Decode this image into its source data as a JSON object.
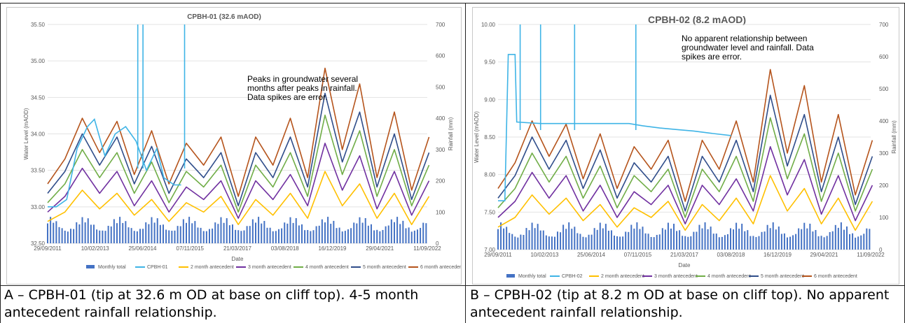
{
  "charts": [
    {
      "title": "CPBH-01 (32.6 mAOD)",
      "ylabel": "Water Level (mAOD)",
      "y2label": "Rainfall (mm)",
      "xlabel": "Date",
      "annotation": [
        "Peaks in groundwater several",
        "months after peaks in rainfall.",
        "Data spikes are error."
      ],
      "caption": "A – CPBH-01 (tip at 32.6 m OD at base on cliff top). 4-5 month antecedent rainfall relationship.",
      "yticks": [
        "32.50",
        "33.00",
        "33.50",
        "34.00",
        "34.50",
        "35.00",
        "35.50"
      ],
      "y2ticks": [
        "0",
        "100",
        "200",
        "300",
        "400",
        "500",
        "600",
        "700"
      ],
      "xticks": [
        "29/09/2011",
        "10/02/2013",
        "25/06/2014",
        "07/11/2015",
        "21/03/2017",
        "03/08/2018",
        "16/12/2019",
        "29/04/2021",
        "11/09/2022"
      ],
      "legend": [
        "Monthly total",
        "CPBH-01",
        "2 month antecedent",
        "3 month antecedent",
        "4 month antecedent",
        "5 month antecedent",
        "6 month antecedent"
      ]
    },
    {
      "title": "CPBH-02 (8.2 mAOD)",
      "ylabel": "Water Level (mAOD)",
      "y2label": "Rainfall (mm)",
      "xlabel": "Date",
      "annotation": [
        "No apparent relationship between",
        "groundwater level and rainfall. Data",
        "spikes are error."
      ],
      "caption": "B – CPBH-02 (tip at 8.2 m OD at base on cliff top). No apparent antecedent rainfall relationship.",
      "yticks": [
        "7.00",
        "7.50",
        "8.00",
        "8.50",
        "9.00",
        "9.50",
        "10.00"
      ],
      "y2ticks": [
        "0",
        "100",
        "200",
        "300",
        "400",
        "500",
        "600",
        "700"
      ],
      "xticks": [
        "29/09/2011",
        "10/02/2013",
        "25/06/2014",
        "07/11/2015",
        "21/03/2017",
        "03/08/2018",
        "16/12/2019",
        "29/04/2021",
        "11/09/2022"
      ],
      "legend": [
        "Monthly total",
        "CPBH-02",
        "2 month antecedent",
        "3 month antecedent",
        "4 month antecedent",
        "5 month antecedent",
        "6 month antecedent"
      ]
    }
  ],
  "series_colors": {
    "monthly_total": "#4472c4",
    "groundwater": "#3fb4e6",
    "m2": "#ffc000",
    "m3": "#7030a0",
    "m4": "#70ad47",
    "m5": "#2f4d8a",
    "m6": "#b5541c"
  },
  "chart_data": [
    {
      "type": "line",
      "title": "CPBH-01 (32.6 mAOD)",
      "xlabel": "Date",
      "ylabel": "Water Level (mAOD)",
      "y2label": "Rainfall (mm)",
      "x_range": [
        "29/09/2011",
        "11/09/2022"
      ],
      "ylim": [
        32.5,
        35.5
      ],
      "y2lim": [
        0,
        700
      ],
      "legend_position": "bottom",
      "series": [
        {
          "name": "CPBH-01",
          "axis": "left",
          "x_years": [
            2011.75,
            2012.0,
            2012.3,
            2012.6,
            2012.9,
            2013.1,
            2013.4,
            2013.7,
            2014.0,
            2014.3,
            2014.6,
            2014.9,
            2015.1,
            2015.4,
            2015.6
          ],
          "values": [
            33.0,
            33.0,
            33.1,
            33.8,
            34.1,
            34.2,
            33.7,
            34.0,
            34.1,
            33.9,
            33.5,
            33.8,
            33.4,
            33.3,
            33.3
          ]
        },
        {
          "name": "2 month antecedent",
          "axis": "right",
          "x_years": [
            2011.75,
            2012.25,
            2012.75,
            2013.25,
            2013.75,
            2014.25,
            2014.75,
            2015.25,
            2015.75,
            2016.25,
            2016.75,
            2017.25,
            2017.75,
            2018.25,
            2018.75,
            2019.25,
            2019.75,
            2020.25,
            2020.75,
            2021.25,
            2021.75,
            2022.25,
            2022.75
          ],
          "values": [
            70,
            100,
            170,
            110,
            160,
            90,
            140,
            70,
            130,
            100,
            150,
            60,
            140,
            90,
            160,
            80,
            230,
            120,
            190,
            80,
            160,
            60,
            150
          ]
        },
        {
          "name": "3 month antecedent",
          "axis": "right",
          "x_years": [
            2011.75,
            2012.25,
            2012.75,
            2013.25,
            2013.75,
            2014.25,
            2014.75,
            2015.25,
            2015.75,
            2016.25,
            2016.75,
            2017.25,
            2017.75,
            2018.25,
            2018.75,
            2019.25,
            2019.75,
            2020.25,
            2020.75,
            2021.25,
            2021.75,
            2022.25,
            2022.75
          ],
          "values": [
            100,
            150,
            240,
            160,
            230,
            120,
            200,
            100,
            180,
            140,
            200,
            80,
            200,
            140,
            220,
            120,
            320,
            170,
            280,
            110,
            230,
            90,
            200
          ]
        },
        {
          "name": "4 month antecedent",
          "axis": "right",
          "x_years": [
            2011.75,
            2012.25,
            2012.75,
            2013.25,
            2013.75,
            2014.25,
            2014.75,
            2015.25,
            2015.75,
            2016.25,
            2016.75,
            2017.25,
            2017.75,
            2018.25,
            2018.75,
            2019.25,
            2019.75,
            2020.25,
            2020.75,
            2021.25,
            2021.75,
            2022.25,
            2022.75
          ],
          "values": [
            130,
            190,
            300,
            210,
            290,
            160,
            260,
            130,
            230,
            180,
            250,
            100,
            250,
            180,
            290,
            150,
            410,
            220,
            360,
            150,
            300,
            120,
            250
          ]
        },
        {
          "name": "5 month antecedent",
          "axis": "right",
          "x_years": [
            2011.75,
            2012.25,
            2012.75,
            2013.25,
            2013.75,
            2014.25,
            2014.75,
            2015.25,
            2015.75,
            2016.25,
            2016.75,
            2017.25,
            2017.75,
            2018.25,
            2018.75,
            2019.25,
            2019.75,
            2020.25,
            2020.75,
            2021.25,
            2021.75,
            2022.25,
            2022.75
          ],
          "values": [
            160,
            230,
            350,
            250,
            340,
            190,
            310,
            160,
            270,
            210,
            290,
            120,
            290,
            210,
            340,
            180,
            480,
            260,
            420,
            180,
            350,
            140,
            290
          ]
        },
        {
          "name": "6 month antecedent",
          "axis": "right",
          "x_years": [
            2011.75,
            2012.25,
            2012.75,
            2013.25,
            2013.75,
            2014.25,
            2014.75,
            2015.25,
            2015.75,
            2016.25,
            2016.75,
            2017.25,
            2017.75,
            2018.25,
            2018.75,
            2019.25,
            2019.75,
            2020.25,
            2020.75,
            2021.25,
            2021.75,
            2022.25,
            2022.75
          ],
          "values": [
            190,
            270,
            400,
            290,
            390,
            220,
            360,
            190,
            320,
            250,
            340,
            150,
            340,
            250,
            400,
            210,
            560,
            300,
            510,
            210,
            420,
            170,
            340
          ]
        }
      ]
    },
    {
      "type": "line",
      "title": "CPBH-02 (8.2 mAOD)",
      "xlabel": "Date",
      "ylabel": "Water Level (mAOD)",
      "y2label": "Rainfall (mm)",
      "x_range": [
        "29/09/2011",
        "11/09/2022"
      ],
      "ylim": [
        7.0,
        10.0
      ],
      "y2lim": [
        0,
        700
      ],
      "legend_position": "bottom",
      "series": [
        {
          "name": "CPBH-02",
          "axis": "left",
          "x_years": [
            2011.75,
            2011.95,
            2012.05,
            2012.25,
            2012.3,
            2013.0,
            2014.0,
            2015.0,
            2015.6,
            2016.0,
            2016.5,
            2017.0,
            2017.5,
            2018.0,
            2018.6
          ],
          "values": [
            7.65,
            7.65,
            9.6,
            9.6,
            8.7,
            8.68,
            8.68,
            8.68,
            8.68,
            8.65,
            8.62,
            8.6,
            8.58,
            8.55,
            8.52
          ]
        },
        {
          "name": "2 month antecedent",
          "axis": "right",
          "x_years": [
            2011.75,
            2012.25,
            2012.75,
            2013.25,
            2013.75,
            2014.25,
            2014.75,
            2015.25,
            2015.75,
            2016.25,
            2016.75,
            2017.25,
            2017.75,
            2018.25,
            2018.75,
            2019.25,
            2019.75,
            2020.25,
            2020.75,
            2021.25,
            2021.75,
            2022.25,
            2022.75
          ],
          "values": [
            70,
            100,
            170,
            110,
            160,
            90,
            140,
            70,
            130,
            100,
            150,
            60,
            140,
            90,
            160,
            80,
            230,
            120,
            190,
            80,
            160,
            60,
            150
          ]
        },
        {
          "name": "3 month antecedent",
          "axis": "right",
          "x_years": [
            2011.75,
            2012.25,
            2012.75,
            2013.25,
            2013.75,
            2014.25,
            2014.75,
            2015.25,
            2015.75,
            2016.25,
            2016.75,
            2017.25,
            2017.75,
            2018.25,
            2018.75,
            2019.25,
            2019.75,
            2020.25,
            2020.75,
            2021.25,
            2021.75,
            2022.25,
            2022.75
          ],
          "values": [
            100,
            150,
            240,
            160,
            230,
            120,
            200,
            100,
            180,
            140,
            200,
            80,
            200,
            140,
            220,
            120,
            320,
            170,
            280,
            110,
            230,
            90,
            200
          ]
        },
        {
          "name": "4 month antecedent",
          "axis": "right",
          "x_years": [
            2011.75,
            2012.25,
            2012.75,
            2013.25,
            2013.75,
            2014.25,
            2014.75,
            2015.25,
            2015.75,
            2016.25,
            2016.75,
            2017.25,
            2017.75,
            2018.25,
            2018.75,
            2019.25,
            2019.75,
            2020.25,
            2020.75,
            2021.25,
            2021.75,
            2022.25,
            2022.75
          ],
          "values": [
            130,
            190,
            300,
            210,
            290,
            160,
            260,
            130,
            230,
            180,
            250,
            100,
            250,
            180,
            290,
            150,
            410,
            220,
            360,
            150,
            300,
            120,
            250
          ]
        },
        {
          "name": "5 month antecedent",
          "axis": "right",
          "x_years": [
            2011.75,
            2012.25,
            2012.75,
            2013.25,
            2013.75,
            2014.25,
            2014.75,
            2015.25,
            2015.75,
            2016.25,
            2016.75,
            2017.25,
            2017.75,
            2018.25,
            2018.75,
            2019.25,
            2019.75,
            2020.25,
            2020.75,
            2021.25,
            2021.75,
            2022.25,
            2022.75
          ],
          "values": [
            160,
            230,
            350,
            250,
            340,
            190,
            310,
            160,
            270,
            210,
            290,
            120,
            290,
            210,
            340,
            180,
            480,
            260,
            420,
            180,
            350,
            140,
            290
          ]
        },
        {
          "name": "6 month antecedent",
          "axis": "right",
          "x_years": [
            2011.75,
            2012.25,
            2012.75,
            2013.25,
            2013.75,
            2014.25,
            2014.75,
            2015.25,
            2015.75,
            2016.25,
            2016.75,
            2017.25,
            2017.75,
            2018.25,
            2018.75,
            2019.25,
            2019.75,
            2020.25,
            2020.75,
            2021.25,
            2021.75,
            2022.25,
            2022.75
          ],
          "values": [
            190,
            270,
            400,
            290,
            390,
            220,
            360,
            190,
            320,
            250,
            340,
            150,
            340,
            250,
            400,
            210,
            560,
            300,
            510,
            210,
            420,
            170,
            340
          ]
        }
      ]
    }
  ]
}
